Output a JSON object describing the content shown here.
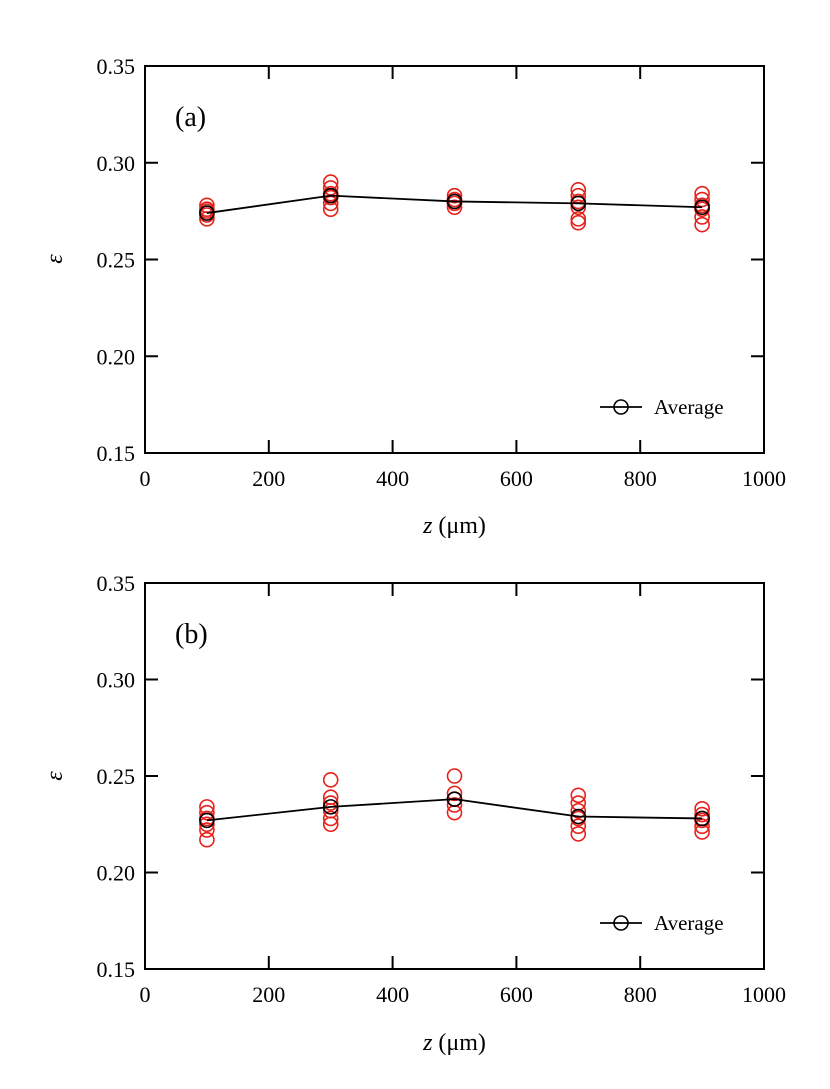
{
  "chart_data": [
    {
      "type": "scatter",
      "panel_label": "(a)",
      "xlabel_var": "z",
      "xlabel_unit": "(μm)",
      "ylabel": "ε",
      "xlim": [
        0,
        1000
      ],
      "ylim": [
        0.15,
        0.35
      ],
      "xticks": [
        0,
        200,
        400,
        600,
        800,
        1000
      ],
      "yticks": [
        0.15,
        0.2,
        0.25,
        0.3,
        0.35
      ],
      "xtick_labels": [
        "0",
        "200",
        "400",
        "600",
        "800",
        "1000"
      ],
      "ytick_labels": [
        "0.15",
        "0.20",
        "0.25",
        "0.30",
        "0.35"
      ],
      "legend": {
        "label": "Average",
        "position": "bottom-right"
      },
      "colors": {
        "samples": "#e8201a",
        "average": "#000000"
      },
      "samples": [
        {
          "x": 100,
          "y": [
            0.271,
            0.273,
            0.275,
            0.276,
            0.278
          ]
        },
        {
          "x": 300,
          "y": [
            0.276,
            0.279,
            0.282,
            0.284,
            0.287,
            0.29
          ]
        },
        {
          "x": 500,
          "y": [
            0.277,
            0.279,
            0.281,
            0.283
          ]
        },
        {
          "x": 700,
          "y": [
            0.269,
            0.271,
            0.277,
            0.28,
            0.283,
            0.286
          ]
        },
        {
          "x": 900,
          "y": [
            0.268,
            0.272,
            0.276,
            0.278,
            0.281,
            0.284
          ]
        }
      ],
      "average": {
        "x": [
          100,
          300,
          500,
          700,
          900
        ],
        "y": [
          0.274,
          0.283,
          0.28,
          0.279,
          0.277
        ]
      }
    },
    {
      "type": "scatter",
      "panel_label": "(b)",
      "xlabel_var": "z",
      "xlabel_unit": "(μm)",
      "ylabel": "ε",
      "xlim": [
        0,
        1000
      ],
      "ylim": [
        0.15,
        0.35
      ],
      "xticks": [
        0,
        200,
        400,
        600,
        800,
        1000
      ],
      "yticks": [
        0.15,
        0.2,
        0.25,
        0.3,
        0.35
      ],
      "xtick_labels": [
        "0",
        "200",
        "400",
        "600",
        "800",
        "1000"
      ],
      "ytick_labels": [
        "0.15",
        "0.20",
        "0.25",
        "0.30",
        "0.35"
      ],
      "legend": {
        "label": "Average",
        "position": "bottom-right"
      },
      "colors": {
        "samples": "#e8201a",
        "average": "#000000"
      },
      "samples": [
        {
          "x": 100,
          "y": [
            0.217,
            0.222,
            0.225,
            0.228,
            0.231,
            0.234
          ]
        },
        {
          "x": 300,
          "y": [
            0.225,
            0.228,
            0.232,
            0.236,
            0.239,
            0.248
          ]
        },
        {
          "x": 500,
          "y": [
            0.231,
            0.235,
            0.238,
            0.241,
            0.25
          ]
        },
        {
          "x": 700,
          "y": [
            0.22,
            0.224,
            0.228,
            0.232,
            0.236,
            0.24
          ]
        },
        {
          "x": 900,
          "y": [
            0.221,
            0.224,
            0.227,
            0.23,
            0.233
          ]
        }
      ],
      "average": {
        "x": [
          100,
          300,
          500,
          700,
          900
        ],
        "y": [
          0.227,
          0.234,
          0.238,
          0.229,
          0.228
        ]
      }
    }
  ]
}
